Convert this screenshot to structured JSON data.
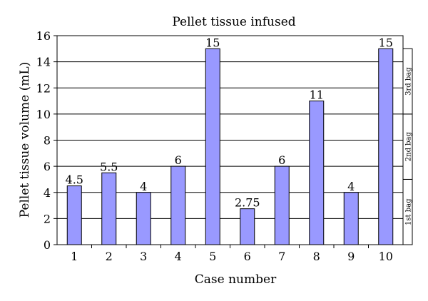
{
  "chart_data": {
    "type": "bar",
    "title": "Pellet tissue infused",
    "xlabel": "Case number",
    "ylabel": "Pellet tissue volume (mL)",
    "ylim": [
      0,
      16
    ],
    "yticks": [
      0,
      2,
      4,
      6,
      8,
      10,
      12,
      14,
      16
    ],
    "grid": true,
    "categories": [
      "1",
      "2",
      "3",
      "4",
      "5",
      "6",
      "7",
      "8",
      "9",
      "10"
    ],
    "values": [
      4.5,
      5.5,
      4,
      6,
      15,
      2.75,
      6,
      11,
      4,
      15
    ],
    "data_labels": [
      "4.5",
      "5.5",
      "4",
      "6",
      "15",
      "2.75",
      "6",
      "11",
      "4",
      "15"
    ],
    "bar_color": "#9999ff",
    "bag_segments": [
      {
        "label": "1st bag",
        "from": 0,
        "to": 5
      },
      {
        "label": "2nd bag",
        "from": 5,
        "to": 10
      },
      {
        "label": "3rd bag",
        "from": 10,
        "to": 15
      }
    ]
  }
}
